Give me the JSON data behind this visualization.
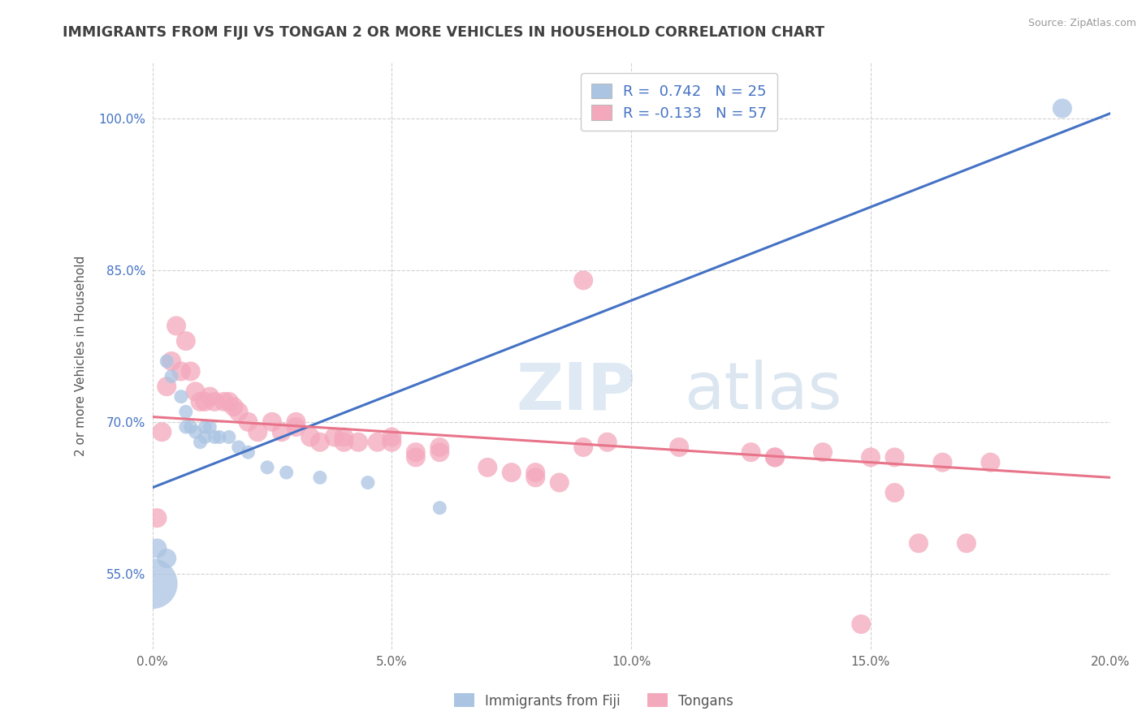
{
  "title": "IMMIGRANTS FROM FIJI VS TONGAN 2 OR MORE VEHICLES IN HOUSEHOLD CORRELATION CHART",
  "source_text": "Source: ZipAtlas.com",
  "ylabel": "2 or more Vehicles in Household",
  "xlim": [
    0.0,
    0.2
  ],
  "ylim": [
    0.475,
    1.055
  ],
  "xticks": [
    0.0,
    0.05,
    0.1,
    0.15,
    0.2
  ],
  "xticklabels": [
    "0.0%",
    "5.0%",
    "10.0%",
    "15.0%",
    "20.0%"
  ],
  "yticks": [
    0.55,
    0.7,
    0.85,
    1.0
  ],
  "yticklabels": [
    "55.0%",
    "70.0%",
    "85.0%",
    "100.0%"
  ],
  "fiji_R": 0.742,
  "fiji_N": 25,
  "tongan_R": -0.133,
  "tongan_N": 57,
  "fiji_color": "#aac4e2",
  "tongan_color": "#f4a8bc",
  "fiji_line_color": "#4472c4",
  "tongan_line_color": "#e8748a",
  "legend_fiji_label": "Immigrants from Fiji",
  "legend_tongan_label": "Tongans",
  "background_color": "#ffffff",
  "grid_color": "#cccccc",
  "title_color": "#404040",
  "watermark_zip": "ZIP",
  "watermark_atlas": "atlas",
  "fiji_line_x0": 0.0,
  "fiji_line_y0": 0.635,
  "fiji_line_x1": 0.2,
  "fiji_line_y1": 1.005,
  "tongan_line_x0": 0.0,
  "tongan_line_y0": 0.705,
  "tongan_line_x1": 0.2,
  "tongan_line_y1": 0.645,
  "fiji_x": [
    0.001,
    0.003,
    0.004,
    0.006,
    0.007,
    0.007,
    0.008,
    0.009,
    0.01,
    0.011,
    0.011,
    0.012,
    0.013,
    0.014,
    0.016,
    0.018,
    0.02,
    0.024,
    0.028,
    0.035,
    0.045,
    0.06,
    0.0,
    0.003,
    0.19
  ],
  "fiji_y": [
    0.575,
    0.76,
    0.745,
    0.725,
    0.71,
    0.695,
    0.695,
    0.69,
    0.68,
    0.685,
    0.695,
    0.695,
    0.685,
    0.685,
    0.685,
    0.675,
    0.67,
    0.655,
    0.65,
    0.645,
    0.64,
    0.615,
    0.54,
    0.565,
    1.01
  ],
  "fiji_sizes": [
    300,
    150,
    150,
    150,
    150,
    150,
    150,
    150,
    150,
    150,
    150,
    150,
    150,
    150,
    150,
    150,
    150,
    150,
    150,
    150,
    150,
    150,
    2000,
    300,
    300
  ],
  "tongan_x": [
    0.001,
    0.002,
    0.003,
    0.004,
    0.005,
    0.006,
    0.007,
    0.008,
    0.009,
    0.01,
    0.011,
    0.012,
    0.013,
    0.015,
    0.016,
    0.017,
    0.018,
    0.02,
    0.022,
    0.025,
    0.027,
    0.03,
    0.033,
    0.035,
    0.038,
    0.04,
    0.043,
    0.047,
    0.05,
    0.055,
    0.06,
    0.07,
    0.075,
    0.08,
    0.085,
    0.09,
    0.095,
    0.11,
    0.125,
    0.14,
    0.155,
    0.09,
    0.175,
    0.13,
    0.15,
    0.165,
    0.05,
    0.06,
    0.08,
    0.03,
    0.04,
    0.055,
    0.16,
    0.155,
    0.17,
    0.13,
    0.148
  ],
  "tongan_y": [
    0.605,
    0.69,
    0.735,
    0.76,
    0.795,
    0.75,
    0.78,
    0.75,
    0.73,
    0.72,
    0.72,
    0.725,
    0.72,
    0.72,
    0.72,
    0.715,
    0.71,
    0.7,
    0.69,
    0.7,
    0.69,
    0.7,
    0.685,
    0.68,
    0.685,
    0.685,
    0.68,
    0.68,
    0.685,
    0.67,
    0.67,
    0.655,
    0.65,
    0.645,
    0.64,
    0.84,
    0.68,
    0.675,
    0.67,
    0.67,
    0.665,
    0.675,
    0.66,
    0.665,
    0.665,
    0.66,
    0.68,
    0.675,
    0.65,
    0.695,
    0.68,
    0.665,
    0.58,
    0.63,
    0.58,
    0.665,
    0.5
  ],
  "tongan_sizes": [
    300,
    300,
    300,
    300,
    300,
    300,
    300,
    300,
    300,
    300,
    300,
    300,
    300,
    300,
    300,
    300,
    300,
    300,
    300,
    300,
    300,
    300,
    300,
    300,
    300,
    300,
    300,
    300,
    300,
    300,
    300,
    300,
    300,
    300,
    300,
    300,
    300,
    300,
    300,
    300,
    300,
    300,
    300,
    300,
    300,
    300,
    300,
    300,
    300,
    300,
    300,
    300,
    300,
    300,
    300,
    300,
    300
  ]
}
